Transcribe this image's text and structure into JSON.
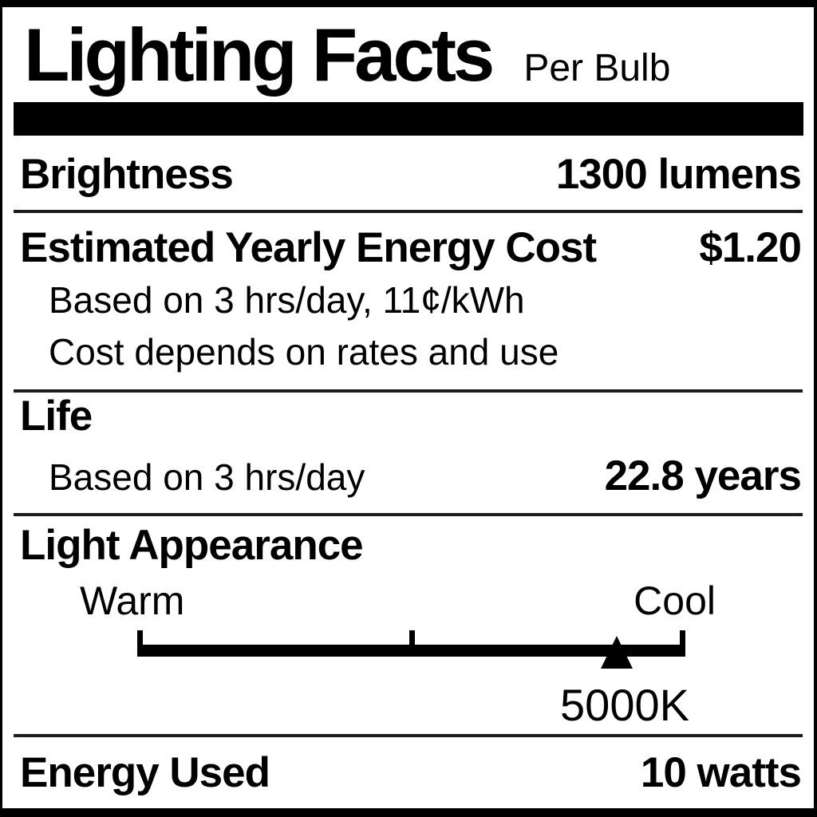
{
  "label": {
    "title": "Lighting Facts",
    "subtitle": "Per Bulb",
    "brightness": {
      "label": "Brightness",
      "value": "1300 lumens"
    },
    "energy_cost": {
      "label": "Estimated Yearly Energy Cost",
      "value": "$1.20",
      "note_basis": "Based on 3 hrs/day, 11¢/kWh",
      "note_disclaimer": "Cost depends on rates and use"
    },
    "life": {
      "label": "Life",
      "note": "Based on 3 hrs/day",
      "value": "22.8 years"
    },
    "light_appearance": {
      "label": "Light Appearance",
      "scale_left": "Warm",
      "scale_right": "Cool",
      "marker_value": "5000K",
      "marker_position_pct": 87.5
    },
    "energy_used": {
      "label": "Energy Used",
      "value": "10 watts"
    },
    "colors": {
      "ink": "#000000",
      "paper": "#ffffff"
    }
  }
}
